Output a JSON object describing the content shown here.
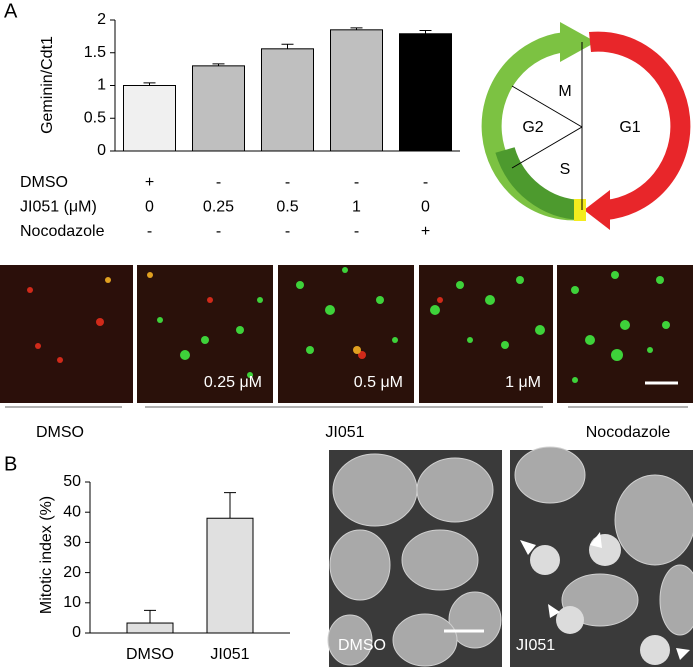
{
  "panel_labels": [
    "A",
    "B"
  ],
  "chart_data": [
    {
      "type": "bar",
      "y_label": "Geminin/Cdt1",
      "categories": [
        null,
        null,
        null,
        null,
        null
      ],
      "values": [
        1.0,
        1.3,
        1.56,
        1.85,
        1.79
      ],
      "errors": [
        0.04,
        0.03,
        0.07,
        0.03,
        0.05
      ],
      "colors": [
        "#f0f0f0",
        "#bfbfbf",
        "#bfbfbf",
        "#bfbfbf",
        "#000000"
      ],
      "ylim": [
        0,
        2
      ],
      "yticks": [
        0,
        0.5,
        1,
        1.5,
        2
      ],
      "conditions": [
        {
          "label": "DMSO",
          "values": [
            "+",
            "-",
            "-",
            "-",
            "-"
          ]
        },
        {
          "label": "JI051 (μM)",
          "values": [
            "0",
            "0.25",
            "0.5",
            "1",
            "0"
          ]
        },
        {
          "label": "Nocodazole",
          "values": [
            "-",
            "-",
            "-",
            "-",
            "+"
          ]
        }
      ]
    },
    {
      "type": "bar",
      "y_label": "Mitotic index (%)",
      "categories": [
        "DMSO",
        "JI051"
      ],
      "values": [
        3.3,
        38
      ],
      "errors": [
        4.2,
        8.5
      ],
      "colors": [
        "#e0e0e0",
        "#e0e0e0"
      ],
      "ylim": [
        0,
        50
      ],
      "yticks": [
        0,
        10,
        20,
        30,
        40,
        50
      ]
    }
  ],
  "cell_cycle": {
    "phases": [
      "M",
      "G2",
      "S",
      "G1"
    ]
  },
  "micrographs": {
    "concentrations": [
      "0.25 μM",
      "0.5 μM",
      "1 μM"
    ],
    "groups": [
      "DMSO",
      "JI051",
      "Nocodazole"
    ]
  },
  "nuclear_images": {
    "labels": [
      "DMSO",
      "JI051"
    ]
  }
}
